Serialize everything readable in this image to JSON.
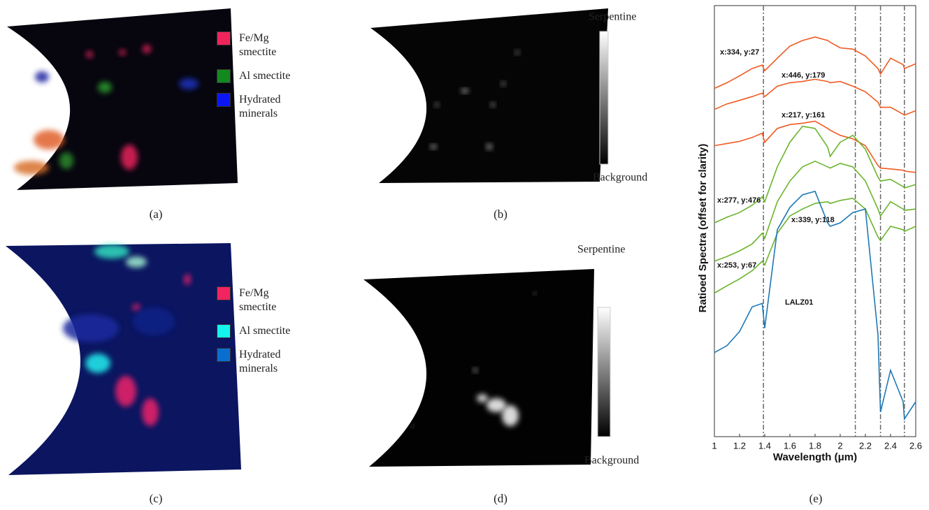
{
  "panels": [
    {
      "label": "(a)",
      "legend": [
        {
          "name": "Fe/Mg smectite",
          "color": "#f0245c"
        },
        {
          "name": "Al smectite",
          "color": "#12891f"
        },
        {
          "name": "Hydrated minerals",
          "color": "#0a16f5"
        }
      ]
    },
    {
      "label": "(b)",
      "colorbar": {
        "top": "Serpentine",
        "bottom": "Background"
      }
    },
    {
      "label": "(c)",
      "legend": [
        {
          "name": "Fe/Mg smectite",
          "color": "#f2245f"
        },
        {
          "name": "Al smectite",
          "color": "#16f4f0"
        },
        {
          "name": "Hydrated minerals",
          "color": "#0a6ed0"
        }
      ]
    },
    {
      "label": "(d)",
      "colorbar": {
        "top": "Serpentine",
        "bottom": "Background"
      }
    }
  ],
  "chart_data": {
    "type": "line",
    "panel_label": "(e)",
    "xlabel": "Wavelength (μm)",
    "ylabel": "Ratioed Spectra (offset for clarity)",
    "x": [
      1.0,
      1.1,
      1.2,
      1.3,
      1.38,
      1.4,
      1.5,
      1.6,
      1.7,
      1.8,
      1.9,
      1.92,
      2.0,
      2.1,
      2.2,
      2.3,
      2.32,
      2.4,
      2.5,
      2.51,
      2.6
    ],
    "xlim": [
      1,
      2.6
    ],
    "xticks": [
      1,
      1.2,
      1.4,
      1.6,
      1.8,
      2,
      2.2,
      2.4,
      2.6
    ],
    "ylim": [
      0,
      100
    ],
    "vlines": [
      1.39,
      2.12,
      2.32,
      2.51
    ],
    "series": [
      {
        "name": "x:334, y:27",
        "color": "#f05a22",
        "values": [
          80.8,
          82.1,
          83.7,
          85.4,
          86.2,
          84.9,
          87.8,
          90.6,
          91.9,
          92.7,
          91.9,
          91.5,
          90.2,
          89.9,
          88.3,
          85.4,
          84.1,
          87.8,
          86.3,
          85.4,
          86.5
        ]
      },
      {
        "name": "x:446, y:179",
        "color": "#f05a22",
        "values": [
          75.9,
          77.2,
          78.0,
          78.9,
          79.7,
          78.9,
          81.3,
          82.1,
          82.4,
          82.9,
          82.4,
          82.1,
          82.4,
          81.3,
          80.0,
          77.6,
          76.4,
          76.4,
          74.8,
          74.6,
          75.6
        ]
      },
      {
        "name": "x:217, y:161",
        "color": "#f05a22",
        "values": [
          67.5,
          68.0,
          68.5,
          69.4,
          70.4,
          68.3,
          71.5,
          72.4,
          72.7,
          73.2,
          71.5,
          71.1,
          69.9,
          69.1,
          67.5,
          62.9,
          62.3,
          62.1,
          61.8,
          61.6,
          61.3
        ]
      },
      {
        "name": "x:277, y:476",
        "color": "#6ab42d",
        "values": [
          49.6,
          50.9,
          52.0,
          53.7,
          55.6,
          54.5,
          62.6,
          68.3,
          72.0,
          71.5,
          67.2,
          65.0,
          68.3,
          69.9,
          66.7,
          60.2,
          59.3,
          59.7,
          58.0,
          57.7,
          58.5
        ]
      },
      {
        "name": "x:253, y:67",
        "color": "#6ab42d",
        "values": [
          40.7,
          41.8,
          43.1,
          44.7,
          47.2,
          46.0,
          54.5,
          59.3,
          62.6,
          63.9,
          62.6,
          62.3,
          63.4,
          62.6,
          59.3,
          52.8,
          51.2,
          54.5,
          52.8,
          52.5,
          52.8
        ]
      },
      {
        "name": "x:339, y:118",
        "color": "#6ab42d",
        "values": [
          33.3,
          35.0,
          36.6,
          38.5,
          40.7,
          39.8,
          47.2,
          51.2,
          52.8,
          54.1,
          54.5,
          54.1,
          54.8,
          55.3,
          52.8,
          46.3,
          45.5,
          48.8,
          48.0,
          47.6,
          48.8
        ]
      },
      {
        "name": "LALZ01",
        "color": "#1f78b4",
        "values": [
          19.5,
          21.1,
          24.4,
          30.1,
          30.9,
          25.2,
          48.0,
          53.2,
          56.1,
          56.9,
          49.6,
          48.8,
          49.6,
          52.0,
          52.8,
          23.6,
          5.7,
          15.4,
          8.1,
          4.1,
          8.1
        ]
      }
    ]
  }
}
